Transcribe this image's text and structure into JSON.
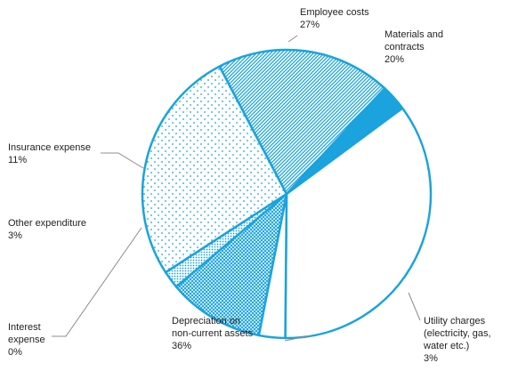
{
  "chart_data": {
    "type": "pie",
    "title": "",
    "colors": {
      "accent": "#1aa3dd",
      "border": "#1aa3dd",
      "leader": "#8c8c8c",
      "text": "#222222"
    },
    "slices": [
      {
        "name": "Employee costs",
        "label_lines": [
          "Employee costs"
        ],
        "value": 27,
        "value_label": "27%",
        "fill": "sparse-dots"
      },
      {
        "name": "Materials and contracts",
        "label_lines": [
          "Materials and",
          "contracts"
        ],
        "value": 20,
        "value_label": "20%",
        "fill": "diagonal-hatch"
      },
      {
        "name": "Utility charges (electricity, gas, water etc.)",
        "label_lines": [
          "Utility charges",
          "(electricity, gas,",
          "water etc.)"
        ],
        "value": 3,
        "value_label": "3%",
        "fill": "solid"
      },
      {
        "name": "Depreciation on non-current assets",
        "label_lines": [
          "Depreciation on",
          "non-current assets"
        ],
        "value": 36,
        "value_label": "36%",
        "fill": "white"
      },
      {
        "name": "Interest expense",
        "label_lines": [
          "Interest",
          "expense"
        ],
        "value": 0,
        "value_label": "0%",
        "fill": "white"
      },
      {
        "name": "Other expenditure",
        "label_lines": [
          "Other expenditure"
        ],
        "value": 3,
        "value_label": "3%",
        "fill": "white"
      },
      {
        "name": "Insurance expense",
        "label_lines": [
          "Insurance expense"
        ],
        "value": 11,
        "value_label": "11%",
        "fill": "cross-hatch"
      },
      {
        "name": "unlabeled segment",
        "label_lines": [],
        "value": 2,
        "value_label": "",
        "fill": "dense-dots"
      }
    ]
  }
}
